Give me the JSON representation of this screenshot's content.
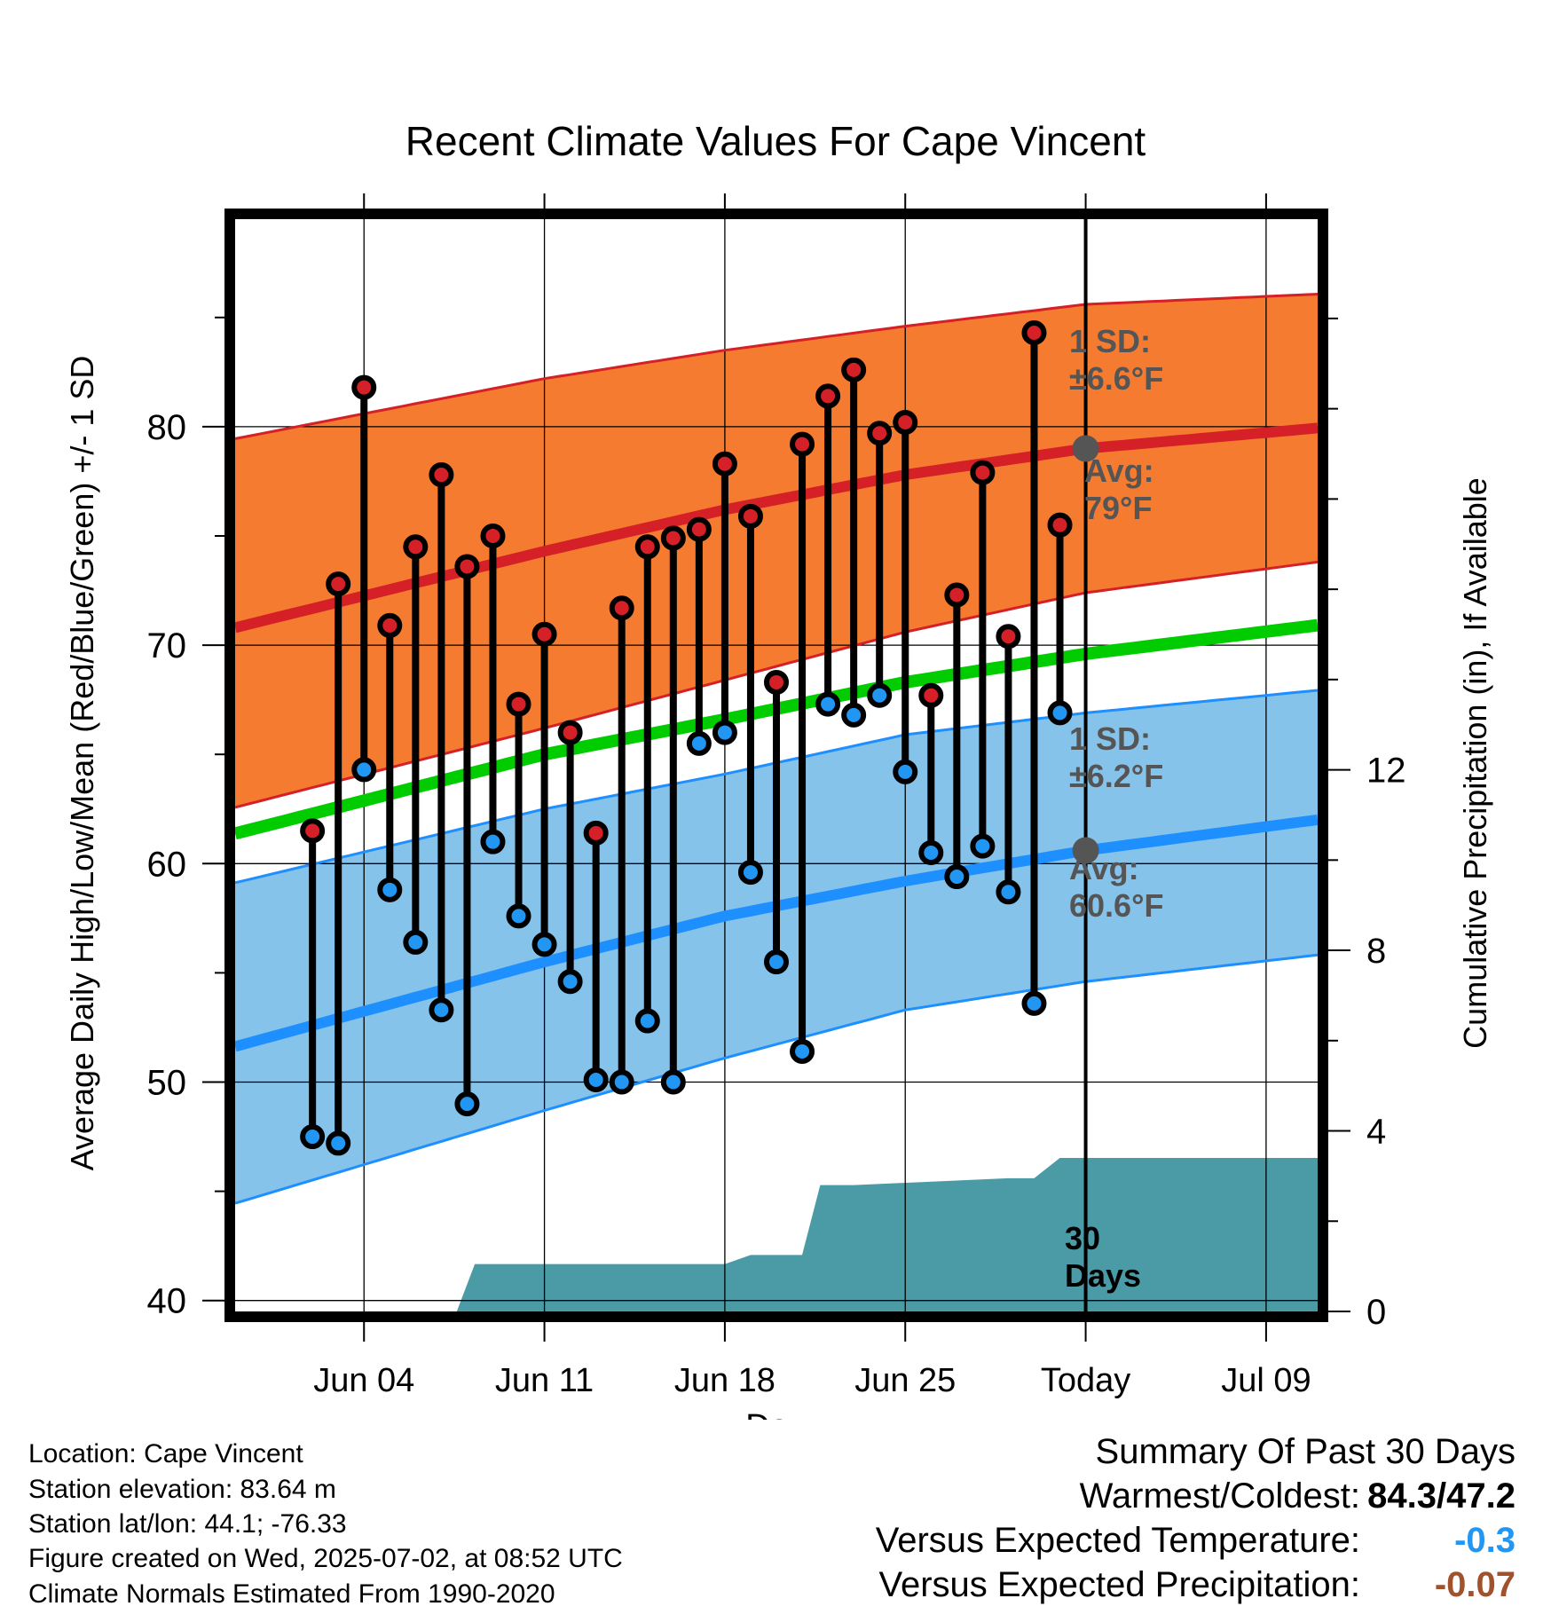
{
  "chart_data": {
    "type": "line",
    "title": "Recent Climate Values For Cape Vincent",
    "xlabel": "Day",
    "ylabel": "Average Daily High/Low/Mean (Red/Blue/Green) +/- 1 SD",
    "y2label": "Cumulative Precipitation (in), If Available",
    "ylim": [
      39.5,
      89.5
    ],
    "y2lim": [
      0,
      24.2
    ],
    "yticks": [
      "40",
      "50",
      "60",
      "70",
      "80"
    ],
    "y2ticks": [
      "0",
      "4",
      "8",
      "12"
    ],
    "x_range_days": [
      -33,
      9
    ],
    "x_ticks": [
      {
        "day": -28,
        "label": "Jun 04"
      },
      {
        "day": -21,
        "label": "Jun 11"
      },
      {
        "day": -14,
        "label": "Jun 18"
      },
      {
        "day": -7,
        "label": "Jun 25"
      },
      {
        "day": 0,
        "label": "Today"
      },
      {
        "day": 7,
        "label": "Jul 09"
      }
    ],
    "grid": true,
    "normals": {
      "x": [
        -30.6,
        -21,
        -14,
        -7,
        0,
        9.6
      ],
      "avg_high": [
        71.5,
        74.3,
        76.2,
        77.8,
        79.0,
        80.0
      ],
      "avg_high_sd_upper": [
        80.0,
        82.2,
        83.5,
        84.6,
        85.6,
        86.1
      ],
      "avg_high_sd_lower": [
        63.3,
        66.2,
        68.4,
        70.6,
        72.4,
        73.9
      ],
      "avg_mean": [
        62.1,
        65.0,
        66.6,
        68.3,
        69.6,
        71.0
      ],
      "avg_low": [
        52.4,
        55.5,
        57.6,
        59.2,
        60.6,
        62.1
      ],
      "avg_low_sd_upper": [
        59.8,
        62.5,
        64.1,
        65.9,
        66.9,
        68.0
      ],
      "avg_low_sd_lower": [
        45.3,
        48.7,
        51.1,
        53.3,
        54.6,
        55.9
      ]
    },
    "daily": {
      "days": [
        -30,
        -29,
        -28,
        -27,
        -26,
        -25,
        -24,
        -23,
        -22,
        -21,
        -20,
        -19,
        -18,
        -17,
        -16,
        -15,
        -14,
        -13,
        -12,
        -11,
        -10,
        -9,
        -8,
        -7,
        -6,
        -5,
        -4,
        -3,
        -2,
        -1
      ],
      "highs": [
        61.5,
        72.8,
        81.8,
        70.9,
        74.5,
        77.8,
        73.6,
        75.0,
        67.3,
        70.5,
        66.0,
        61.4,
        71.7,
        74.5,
        74.9,
        75.3,
        78.3,
        75.9,
        68.3,
        79.2,
        81.4,
        82.6,
        79.7,
        80.2,
        67.7,
        72.3,
        77.9,
        70.4,
        84.3,
        75.5
      ],
      "lows": [
        47.5,
        47.2,
        64.3,
        58.8,
        56.4,
        53.3,
        49.0,
        61.0,
        57.6,
        56.3,
        54.6,
        50.1,
        50.0,
        52.8,
        50.0,
        65.5,
        66.0,
        59.6,
        55.5,
        51.4,
        67.3,
        66.8,
        67.7,
        64.2,
        60.5,
        59.4,
        60.8,
        58.7,
        53.6,
        66.9
      ]
    },
    "precip": {
      "x": [
        -33,
        -24.4,
        -23.7,
        -14,
        -13,
        -12,
        -11,
        -10.3,
        -9,
        -3,
        -2,
        -1,
        9.6
      ],
      "values": [
        0,
        0,
        1.05,
        1.05,
        1.25,
        1.25,
        1.25,
        2.8,
        2.8,
        2.95,
        2.95,
        3.4,
        3.4
      ]
    },
    "annotations": {
      "high_sd": [
        "1 SD:",
        "±6.6°F"
      ],
      "high_avg": [
        "Avg:",
        "79°F"
      ],
      "low_sd": [
        "1 SD:",
        "±6.2°F"
      ],
      "low_avg": [
        "Avg:",
        "60.6°F"
      ],
      "window": [
        "30",
        "Days"
      ]
    },
    "today_marks": {
      "high": 79.0,
      "low": 60.6
    }
  },
  "station": {
    "location": "Location: Cape Vincent",
    "elevation": "Station elevation: 83.64 m",
    "latlon": "Station lat/lon: 44.1; -76.33",
    "created": "Figure created on Wed, 2025-07-02, at 08:52 UTC",
    "normals": "Climate Normals Estimated From 1990-2020"
  },
  "summary": {
    "title": "Summary Of Past 30 Days",
    "warm_label": "Warmest/Coldest:",
    "warm_value": "84.3/47.2",
    "temp_label": "Versus Expected Temperature:",
    "temp_value": "-0.3",
    "precip_label": "Versus Expected Precipitation:",
    "precip_value": "-0.07"
  },
  "colors": {
    "high_band": "#f47b2f",
    "high_line": "#d42026",
    "low_band": "#85c3ea",
    "low_line": "#1e8fff",
    "mean_line": "#00cc00",
    "precip": "#4a9ba6",
    "high_dot": "#d42026",
    "low_dot": "#2196f3",
    "label_gray": "#555555",
    "temp_value": "#2196f3",
    "precip_value": "#a0522d"
  }
}
